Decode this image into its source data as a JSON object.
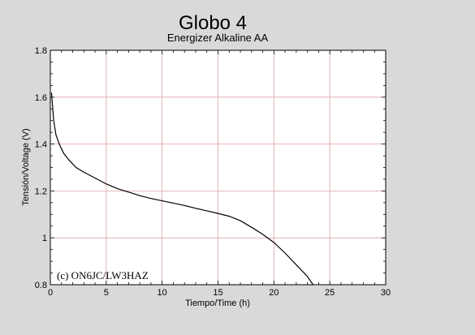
{
  "chart_data": {
    "type": "line",
    "title": "Globo 4",
    "subtitle": "Energizer Alkaline AA",
    "xlabel": "Tiempo/Time (h)",
    "ylabel": "Tensión/Voltage (V)",
    "xlim": [
      0,
      30
    ],
    "ylim": [
      0.8,
      1.8
    ],
    "xticks": [
      0,
      5,
      10,
      15,
      20,
      25,
      30
    ],
    "yticks": [
      0.8,
      1,
      1.2,
      1.4,
      1.6,
      1.8
    ],
    "xtick_labels": [
      "0",
      "5",
      "10",
      "15",
      "20",
      "25",
      "30"
    ],
    "ytick_labels": [
      "0.8",
      "1",
      "1.2",
      "1.4",
      "1.6",
      "1.8"
    ],
    "grid": true,
    "grid_color": "#e0a0a0",
    "line_color": "#000000",
    "annotation": "(c) ON6JC/LW3HAZ",
    "series": [
      {
        "x": [
          0.1,
          0.3,
          0.5,
          0.8,
          1.2,
          1.7,
          2.3,
          3,
          4,
          5,
          6,
          7,
          8,
          9,
          10,
          11,
          12,
          13,
          14,
          15,
          16,
          17,
          18,
          19,
          20,
          21,
          22,
          23,
          23.5
        ],
        "y": [
          1.62,
          1.5,
          1.44,
          1.4,
          1.36,
          1.33,
          1.3,
          1.28,
          1.255,
          1.23,
          1.21,
          1.195,
          1.18,
          1.168,
          1.158,
          1.148,
          1.138,
          1.126,
          1.115,
          1.104,
          1.092,
          1.073,
          1.045,
          1.015,
          0.98,
          0.935,
          0.885,
          0.835,
          0.8
        ]
      }
    ]
  }
}
